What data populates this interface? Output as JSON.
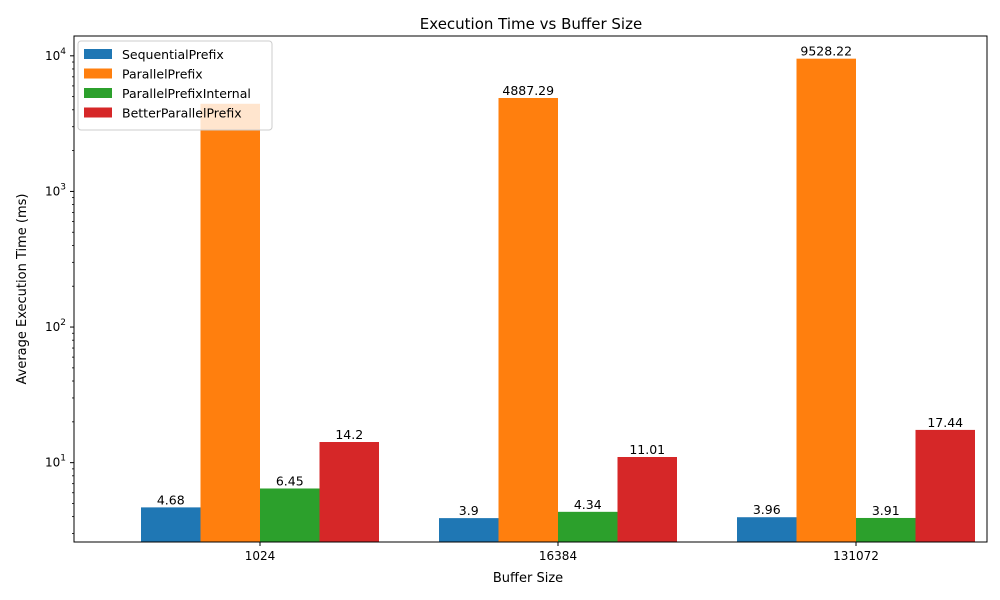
{
  "chart_data": {
    "type": "bar",
    "title": "Execution Time vs Buffer Size",
    "xlabel": "Buffer Size",
    "ylabel": "Average Execution Time (ms)",
    "yscale": "log",
    "ylim": [
      2.6,
      14000
    ],
    "categories": [
      "1024",
      "16384",
      "131072"
    ],
    "series": [
      {
        "name": "SequentialPrefix",
        "color": "#1f77b4",
        "values": [
          4.68,
          3.9,
          3.96
        ],
        "labels": [
          "4.68",
          "3.9",
          "3.96"
        ]
      },
      {
        "name": "ParallelPrefix",
        "color": "#ff7f0e",
        "values": [
          4430.0,
          4887.29,
          9528.22
        ],
        "labels": [
          "",
          "4887.29",
          "9528.22"
        ]
      },
      {
        "name": "ParallelPrefixInternal",
        "color": "#2ca02c",
        "values": [
          6.45,
          4.34,
          3.91
        ],
        "labels": [
          "6.45",
          "4.34",
          "3.91"
        ]
      },
      {
        "name": "BetterParallelPrefix",
        "color": "#d62728",
        "values": [
          14.2,
          11.01,
          17.44
        ],
        "labels": [
          "14.2",
          "11.01",
          "17.44"
        ]
      }
    ],
    "yticks": [
      {
        "value": 10,
        "base": "10",
        "exp": "1"
      },
      {
        "value": 100,
        "base": "10",
        "exp": "2"
      },
      {
        "value": 1000,
        "base": "10",
        "exp": "3"
      },
      {
        "value": 10000,
        "base": "10",
        "exp": "4"
      }
    ],
    "legend_position": "top-left",
    "grid": false
  }
}
